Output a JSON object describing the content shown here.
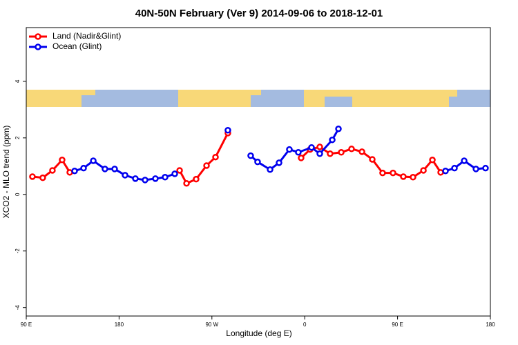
{
  "chart_data": {
    "type": "line",
    "title": "40N-50N February (Ver 9)   2014-09-06 to 2018-12-01",
    "x_label": "Longitude (deg E)",
    "y_label": "XCO2 - MLO trend (ppm)",
    "xlim": [
      90,
      540
    ],
    "ylim": [
      -4.3,
      5.9
    ],
    "xticks": [
      {
        "value": 90,
        "label": "90 E"
      },
      180,
      {
        "value": 270,
        "label": "90 W"
      },
      {
        "value": 360,
        "label": "0"
      },
      {
        "value": 450,
        "label": "90 E"
      },
      {
        "value": 540,
        "label": "180"
      }
    ],
    "yticks": [
      -4,
      -2,
      0,
      2,
      4
    ],
    "legend": "top-left",
    "series": [
      {
        "name": "Land (Nadir&Glint)",
        "color": "#ff0000",
        "x": [
          96,
          106,
          115.4,
          124.8,
          132.2,
          null,
          238.7,
          245.4,
          254.7,
          264.8,
          273.5,
          285.5,
          null,
          356.5,
          365.2,
          374.6,
          384.6,
          395.4,
          405.4,
          415.5,
          425.5,
          435.5,
          445.6,
          455.6,
          465.0,
          475.1,
          483.8,
          491.8
        ],
        "values": [
          0.63,
          0.59,
          0.85,
          1.22,
          0.78,
          null,
          0.85,
          0.39,
          0.54,
          1.02,
          1.32,
          2.17,
          null,
          1.29,
          1.59,
          1.68,
          1.44,
          1.49,
          1.61,
          1.51,
          1.24,
          0.76,
          0.76,
          0.63,
          0.61,
          0.85,
          1.22,
          0.78
        ]
      },
      {
        "name": "Ocean (Glint)",
        "color": "#0000ee",
        "x": [
          136.9,
          145.6,
          155.0,
          166.3,
          175.7,
          185.8,
          195.8,
          205.2,
          215.2,
          224.6,
          234.0,
          null,
          285.5,
          null,
          307.6,
          314.3,
          326.4,
          335.1,
          345.1,
          353.8,
          366.6,
          374.6,
          386.7,
          392.7,
          null,
          496.5,
          505.2,
          514.6,
          526.0,
          535.3
        ],
        "values": [
          0.83,
          0.93,
          1.19,
          0.9,
          0.9,
          0.68,
          0.56,
          0.51,
          0.56,
          0.61,
          0.73,
          null,
          2.27,
          null,
          1.37,
          1.15,
          0.88,
          1.12,
          1.59,
          1.49,
          1.66,
          1.44,
          1.93,
          2.32,
          null,
          0.83,
          0.93,
          1.19,
          0.9,
          0.93
        ]
      }
    ]
  }
}
